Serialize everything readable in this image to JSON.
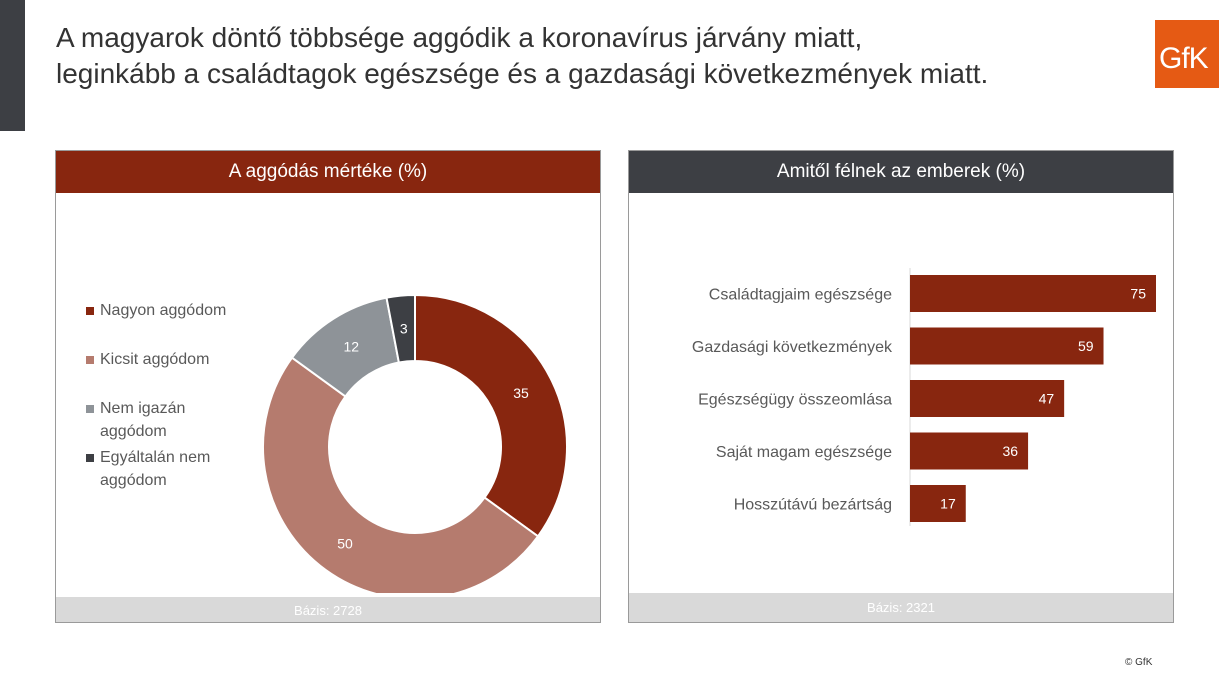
{
  "title": {
    "line1": "A magyarok döntő többsége aggódik a koronavírus járvány miatt,",
    "line2": "leginkább a családtagok egészsége és a gazdasági következmények miatt."
  },
  "logo": {
    "text": "GfK",
    "color": "#e55a14"
  },
  "left_panel": {
    "header": "A aggódás mértéke (%)",
    "footer": "Bázis: 2728"
  },
  "right_panel": {
    "header": "Amitől félnek az emberek (%)",
    "footer": "Bázis: 2321"
  },
  "copyright": "© GfK",
  "colors": {
    "dark_red": "#88260f",
    "rose": "#b57b6e",
    "grey": "#8e9398",
    "charcoal": "#3d3f44"
  },
  "chart_data": [
    {
      "type": "pie",
      "title": "A aggódás mértéke (%)",
      "categories": [
        "Nagyon aggódom",
        "Kicsit aggódom",
        "Nem igazán aggódom",
        "Egyáltalán nem aggódom"
      ],
      "values": [
        35,
        50,
        12,
        3
      ],
      "colors": [
        "#88260f",
        "#b57b6e",
        "#8e9398",
        "#3d3f44"
      ],
      "donut": true,
      "legend": "left"
    },
    {
      "type": "bar",
      "orientation": "horizontal",
      "title": "Amitől félnek az emberek (%)",
      "categories": [
        "Családtagjaim egészsége",
        "Gazdasági következmények",
        "Egészségügy összeomlása",
        "Saját magam egészsége",
        "Hosszútávú bezártság"
      ],
      "values": [
        75,
        59,
        47,
        36,
        17
      ],
      "color": "#88260f",
      "xlim": [
        0,
        75
      ]
    }
  ]
}
